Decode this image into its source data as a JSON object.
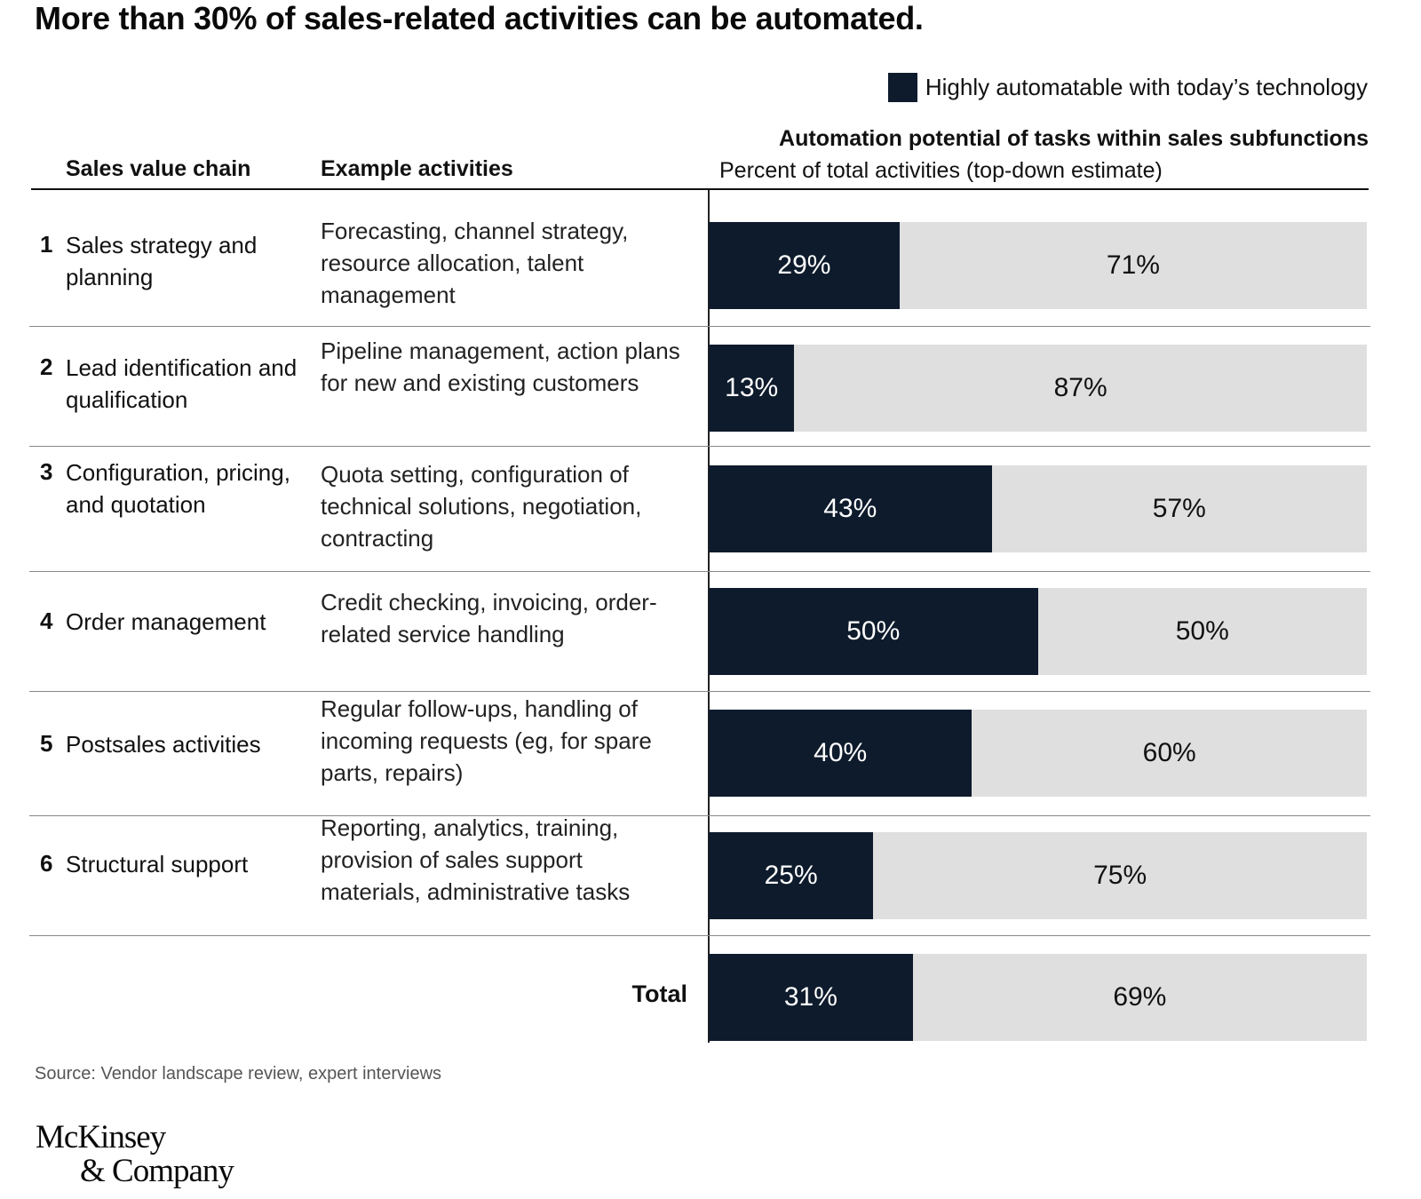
{
  "title": "More than 30% of sales-related activities can be automated.",
  "legend": {
    "label": "Highly automatable with today’s technology",
    "color": "#0e1b2c"
  },
  "headers": {
    "col1": "Sales value chain",
    "col2": "Example activities",
    "col3": "Automation potential of tasks within sales subfunctions",
    "col3_sub": "Percent of total activities (top-down estimate)"
  },
  "chart_data": {
    "type": "bar",
    "stacked": true,
    "orientation": "horizontal",
    "title": "Automation potential of tasks within sales subfunctions",
    "xlabel": "Percent of total activities (top-down estimate)",
    "categories": [
      "Sales strategy and planning",
      "Lead identification and qualification",
      "Configuration, pricing, and quotation",
      "Order management",
      "Postsales activities",
      "Structural support",
      "Total"
    ],
    "series": [
      {
        "name": "Highly automatable with today’s technology",
        "color": "#0e1b2c",
        "values": [
          29,
          13,
          43,
          50,
          40,
          25,
          31
        ]
      },
      {
        "color": "#dfdfdf",
        "values": [
          71,
          87,
          57,
          50,
          60,
          75,
          69
        ]
      }
    ],
    "xlim": [
      0,
      100
    ]
  },
  "rows": [
    {
      "num": "1",
      "label": "Sales strategy and planning",
      "activities": "Forecasting, channel strategy, resource allocation, talent management",
      "auto": "29%",
      "rest": "71%"
    },
    {
      "num": "2",
      "label": "Lead identification and qualification",
      "activities": "Pipeline management, action plans for new and existing customers",
      "auto": "13%",
      "rest": "87%"
    },
    {
      "num": "3",
      "label": "Configuration, pricing, and quotation",
      "activities": "Quota setting, configuration of technical solutions, negotiation, contracting",
      "auto": "43%",
      "rest": "57%"
    },
    {
      "num": "4",
      "label": "Order management",
      "activities": "Credit checking, invoicing, order-related service handling",
      "auto": "50%",
      "rest": "50%"
    },
    {
      "num": "5",
      "label": "Postsales activities",
      "activities": "Regular follow-ups, handling of incoming requests (eg, for spare parts, repairs)",
      "auto": "40%",
      "rest": "60%"
    },
    {
      "num": "6",
      "label": "Structural support",
      "activities": "Reporting, analytics, training, provision of sales support materials, administrative tasks",
      "auto": "25%",
      "rest": "75%"
    }
  ],
  "total": {
    "label": "Total",
    "auto": "31%",
    "rest": "69%"
  },
  "source": "Source: Vendor landscape review, expert interviews",
  "logo": {
    "line1": "McKinsey",
    "line2": "& Company"
  }
}
